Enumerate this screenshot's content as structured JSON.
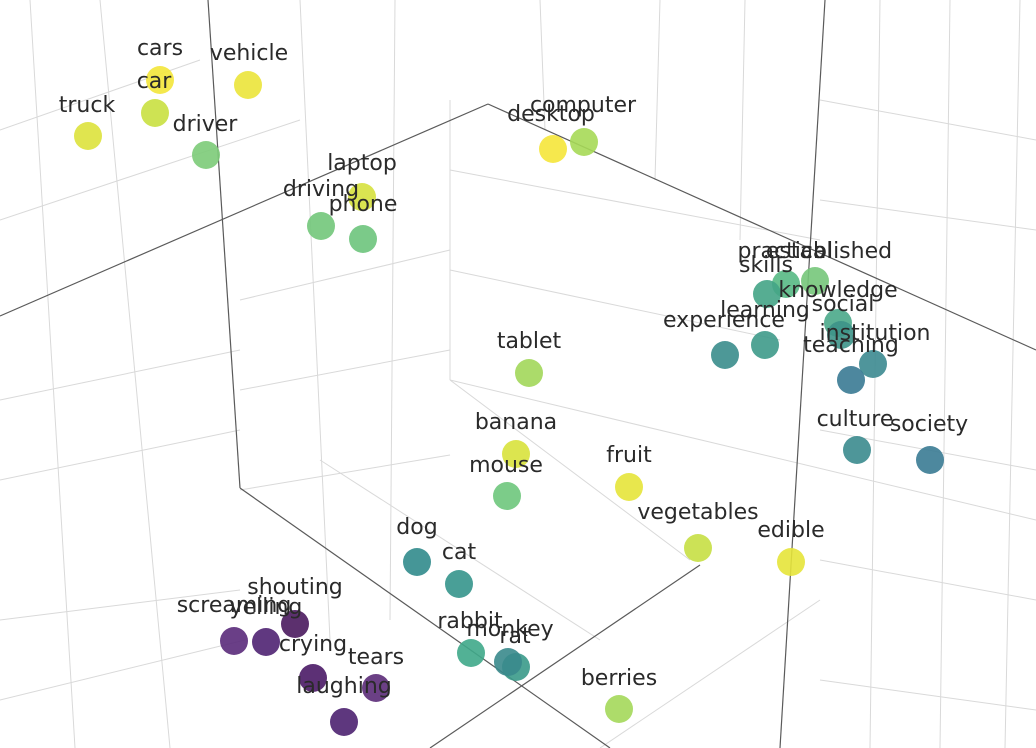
{
  "chart_data": {
    "type": "scatter",
    "title": "",
    "grid": true,
    "legend": "none",
    "points": [
      {
        "label": "cars",
        "color": "#f3e53a"
      },
      {
        "label": "vehicle",
        "color": "#ebe43a"
      },
      {
        "label": "car",
        "color": "#c9e040"
      },
      {
        "label": "truck",
        "color": "#dde23c"
      },
      {
        "label": "driver",
        "color": "#7ccb78"
      },
      {
        "label": "computer",
        "color": "#a6d957"
      },
      {
        "label": "desktop",
        "color": "#f5e63a"
      },
      {
        "label": "laptop",
        "color": "#d6e13e"
      },
      {
        "label": "driving",
        "color": "#72c67a"
      },
      {
        "label": "phone",
        "color": "#6dc47c"
      },
      {
        "label": "practical",
        "color": "#56b984"
      },
      {
        "label": "established",
        "color": "#75c77a"
      },
      {
        "label": "skills",
        "color": "#44a486"
      },
      {
        "label": "knowledge",
        "color": "#4aa98a"
      },
      {
        "label": "learning",
        "color": "#3e9a8a"
      },
      {
        "label": "social",
        "color": "#3d9488"
      },
      {
        "label": "experience",
        "color": "#3a8d8c"
      },
      {
        "label": "institution",
        "color": "#3c8990"
      },
      {
        "label": "teaching",
        "color": "#3a7a93"
      },
      {
        "label": "tablet",
        "color": "#a2d75a"
      },
      {
        "label": "banana",
        "color": "#d8e23c"
      },
      {
        "label": "mouse",
        "color": "#6ec67c"
      },
      {
        "label": "fruit",
        "color": "#e6e43a"
      },
      {
        "label": "culture",
        "color": "#3b8b8e"
      },
      {
        "label": "society",
        "color": "#3a7b93"
      },
      {
        "label": "vegetables",
        "color": "#c6df44"
      },
      {
        "label": "edible",
        "color": "#e6e43a"
      },
      {
        "label": "dog",
        "color": "#318b8c"
      },
      {
        "label": "cat",
        "color": "#35958c"
      },
      {
        "label": "shouting",
        "color": "#4a1a5e"
      },
      {
        "label": "screaming",
        "color": "#5a2a7a"
      },
      {
        "label": "yelling",
        "color": "#4f2272"
      },
      {
        "label": "crying",
        "color": "#4a1a66"
      },
      {
        "label": "rabbit",
        "color": "#3fa88a"
      },
      {
        "label": "monkey",
        "color": "#3a9a8a"
      },
      {
        "label": "rat",
        "color": "#3a8a8c"
      },
      {
        "label": "tears",
        "color": "#5b2b78"
      },
      {
        "label": "laughing",
        "color": "#4c2170"
      },
      {
        "label": "berries",
        "color": "#a4d85a"
      }
    ]
  }
}
